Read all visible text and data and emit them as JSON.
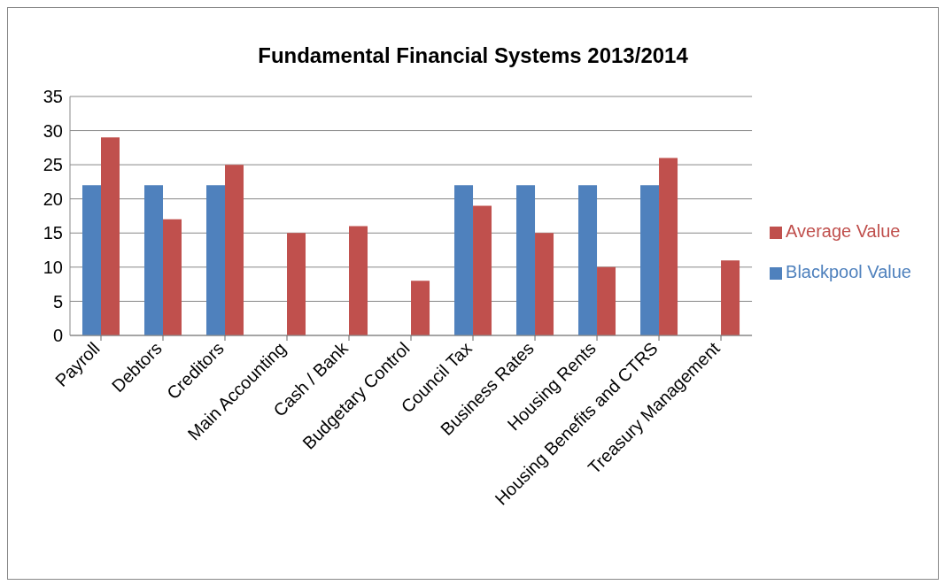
{
  "chart_data": {
    "type": "bar",
    "title": "Fundamental Financial Systems 2013/2014",
    "categories": [
      "Payroll",
      "Debtors",
      "Creditors",
      "Main Accounting",
      "Cash / Bank",
      "Budgetary Control",
      "Council Tax",
      "Business Rates",
      "Housing Rents",
      "Housing Benefits and CTRS",
      "Treasury Management"
    ],
    "series": [
      {
        "name": "Blackpool Value",
        "color": "#4f81bd",
        "values": [
          22,
          22,
          22,
          null,
          null,
          null,
          22,
          22,
          22,
          22,
          null
        ]
      },
      {
        "name": "Average Value",
        "color": "#c0504d",
        "values": [
          29,
          17,
          25,
          15,
          16,
          8,
          19,
          15,
          10,
          26,
          11
        ]
      }
    ],
    "ylim": [
      0,
      35
    ],
    "yticks": [
      0,
      5,
      10,
      15,
      20,
      25,
      30,
      35
    ],
    "grid": "y",
    "legend": "right"
  }
}
